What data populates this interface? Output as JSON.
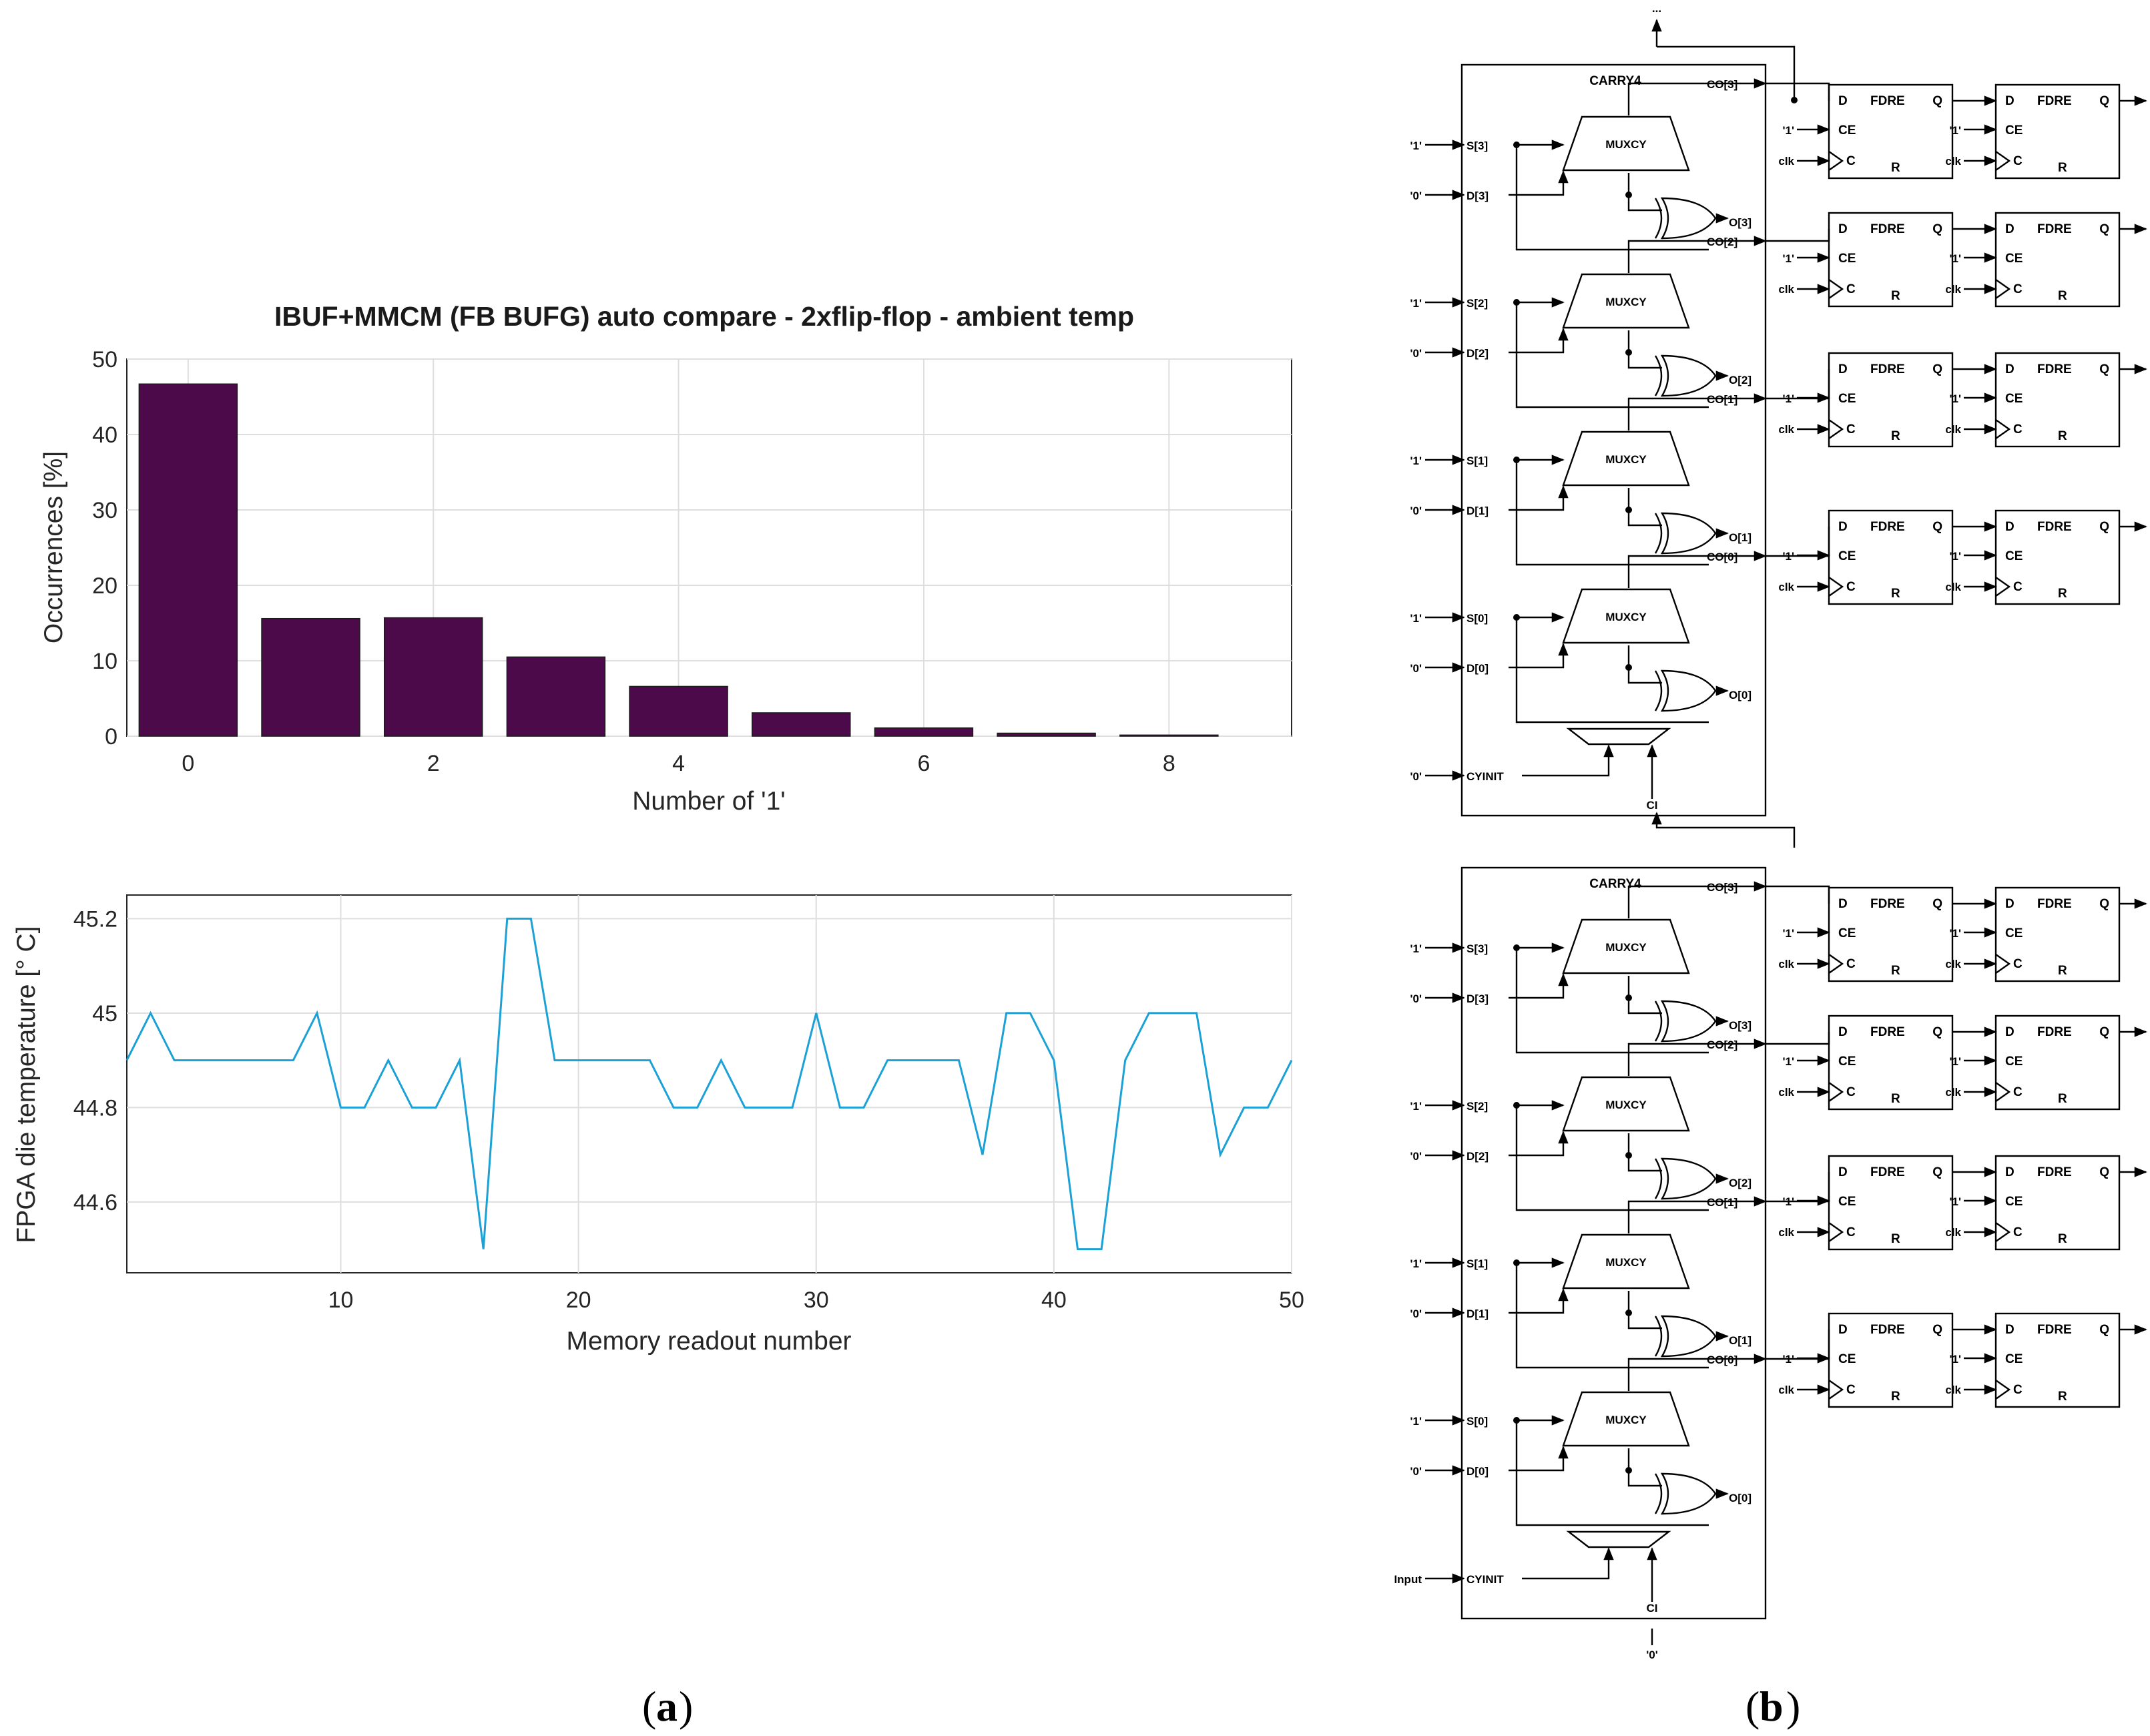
{
  "panel_labels": {
    "a": "a",
    "b": "b"
  },
  "chart_data": [
    {
      "type": "bar",
      "title": "IBUF+MMCM (FB BUFG) auto compare - 2xflip-flop - ambient temp",
      "xlabel": "Number of '1'",
      "ylabel": "Occurrences [%]",
      "categories": [
        0,
        1,
        2,
        3,
        4,
        5,
        6,
        7,
        8
      ],
      "values": [
        46.7,
        15.6,
        15.7,
        10.5,
        6.6,
        3.1,
        1.1,
        0.4,
        0.15
      ],
      "xlim": [
        -0.5,
        9
      ],
      "ylim": [
        0,
        50
      ],
      "xticks": [
        "0",
        "2",
        "4",
        "6",
        "8"
      ],
      "yticks": [
        "0",
        "10",
        "20",
        "30",
        "40",
        "50"
      ],
      "color": "#4d0a4b",
      "grid": true
    },
    {
      "type": "line",
      "xlabel": "Memory readout number",
      "ylabel": "FPGA die temperature [° C]",
      "x": [
        1,
        2,
        3,
        4,
        5,
        6,
        7,
        8,
        9,
        10,
        11,
        12,
        13,
        14,
        15,
        16,
        17,
        18,
        19,
        20,
        21,
        22,
        23,
        24,
        25,
        26,
        27,
        28,
        29,
        30,
        31,
        32,
        33,
        34,
        35,
        36,
        37,
        38,
        39,
        40,
        41,
        42,
        43,
        44,
        45,
        46,
        47,
        48,
        49,
        50
      ],
      "values": [
        44.9,
        45.0,
        44.9,
        44.9,
        44.9,
        44.9,
        44.9,
        44.9,
        45.0,
        44.8,
        44.8,
        44.9,
        44.8,
        44.8,
        44.9,
        44.5,
        45.2,
        45.2,
        44.9,
        44.9,
        44.9,
        44.9,
        44.9,
        44.8,
        44.8,
        44.9,
        44.8,
        44.8,
        44.8,
        45.0,
        44.8,
        44.8,
        44.9,
        44.9,
        44.9,
        44.9,
        44.7,
        45.0,
        45.0,
        44.9,
        44.5,
        44.5,
        44.9,
        45.0,
        45.0,
        45.0,
        44.7,
        44.8,
        44.8,
        44.9
      ],
      "xlim": [
        1,
        50
      ],
      "ylim": [
        44.45,
        45.25
      ],
      "xticks": [
        "10",
        "20",
        "30",
        "40",
        "50"
      ],
      "yticks": [
        "44.6",
        "44.8",
        "45",
        "45.2"
      ],
      "color": "#1ba1d6",
      "grid": true
    }
  ],
  "diagram": {
    "top_ellipsis": "...",
    "carry_label": "CARRY4",
    "mux_label": "MUXCY",
    "ff_label": "FDRE",
    "ff_pins": {
      "d": "D",
      "q": "Q",
      "ce": "CE",
      "c": "C",
      "r": "R"
    },
    "one": "'1'",
    "zero": "'0'",
    "clk": "clk",
    "s_pins": [
      "S[3]",
      "S[2]",
      "S[1]",
      "S[0]"
    ],
    "d_pins": [
      "D[3]",
      "D[2]",
      "D[1]",
      "D[0]"
    ],
    "co_pins": [
      "CO[3]",
      "CO[2]",
      "CO[1]",
      "CO[0]"
    ],
    "o_pins": [
      "O[3]",
      "O[2]",
      "O[1]",
      "O[0]"
    ],
    "cyinit": "CYINIT",
    "ci": "CI",
    "bottom_input": "Input",
    "bottom_ci_source": "'0'"
  }
}
